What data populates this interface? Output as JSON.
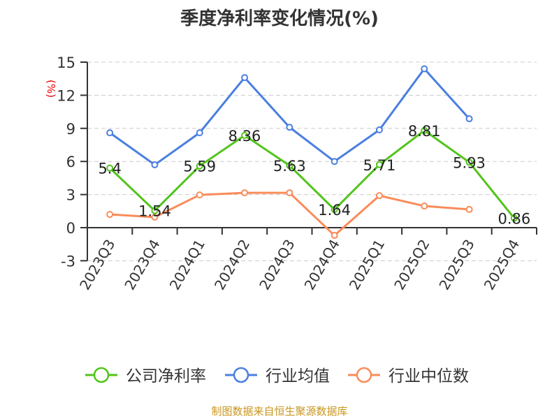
{
  "chart_data": {
    "type": "line",
    "title": "季度净利率变化情况(%)",
    "ylabel": "(%)",
    "ylim": [
      -3,
      15
    ],
    "yticks": [
      -3,
      0,
      3,
      6,
      9,
      12,
      15
    ],
    "grid": true,
    "legend_position": "bottom",
    "categories": [
      "2023Q3",
      "2023Q4",
      "2024Q1",
      "2024Q2",
      "2024Q3",
      "2024Q4",
      "2025Q1",
      "2025Q2",
      "2025Q3",
      "2025Q4"
    ],
    "series": [
      {
        "name": "公司净利率",
        "color": "#52c41a",
        "values": [
          5.4,
          1.54,
          5.59,
          8.36,
          5.63,
          1.64,
          5.71,
          8.81,
          5.93,
          0.86
        ],
        "labels": [
          "5.4",
          "1.54",
          "5.59",
          "8.36",
          "5.63",
          "1.64",
          "5.71",
          "8.81",
          "5.93",
          "0.86"
        ]
      },
      {
        "name": "行业均值",
        "color": "#4a7fe0",
        "values": [
          8.6,
          5.7,
          8.6,
          13.6,
          9.1,
          6.0,
          8.86,
          14.4,
          9.87,
          null
        ]
      },
      {
        "name": "行业中位数",
        "color": "#fa8c5a",
        "values": [
          1.2,
          0.95,
          2.97,
          3.16,
          3.16,
          -0.7,
          2.9,
          1.96,
          1.65,
          null
        ]
      }
    ]
  },
  "footer": "制图数据来自恒生聚源数据库"
}
